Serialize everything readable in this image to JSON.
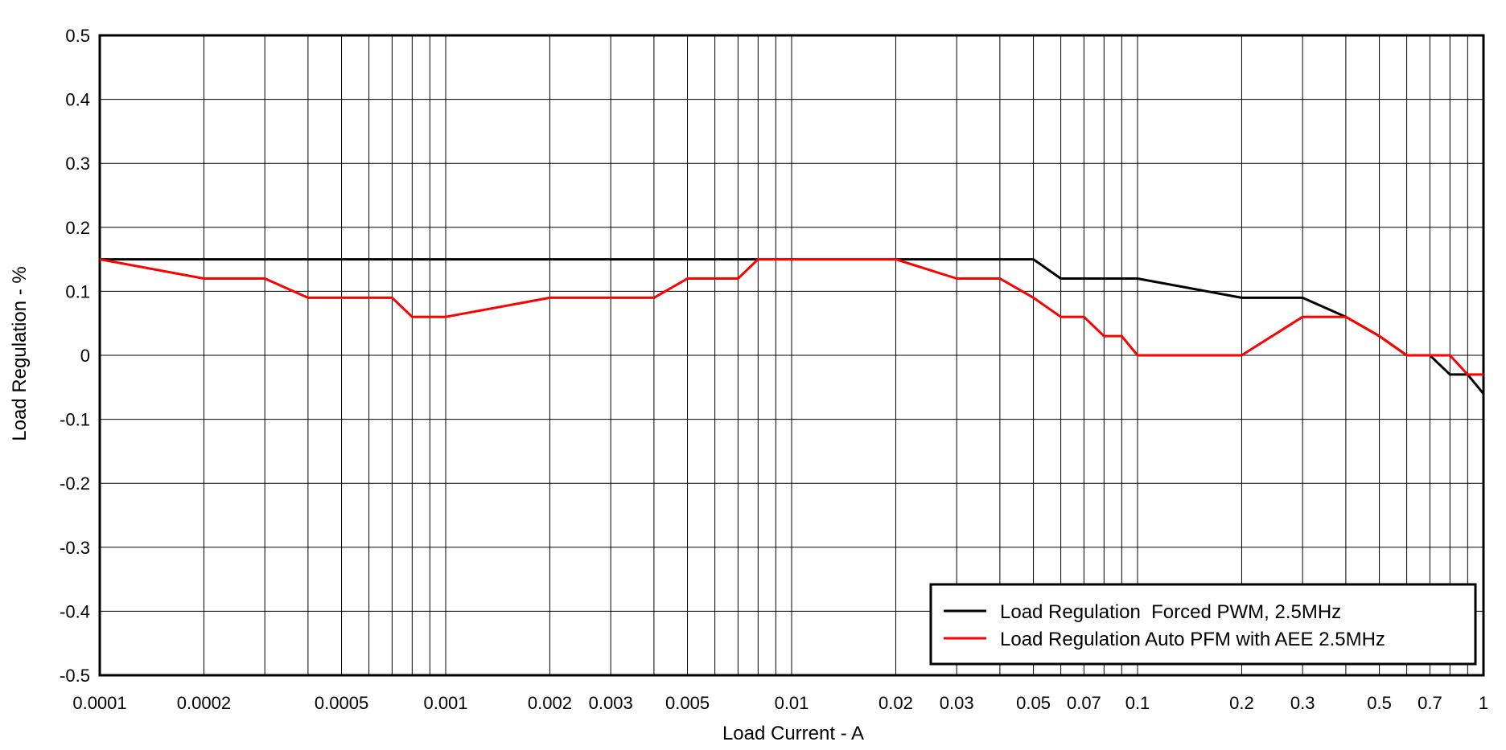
{
  "chart_data": {
    "type": "line",
    "title": "",
    "xlabel": "Load Current - A",
    "ylabel": "Load Regulation - %",
    "xscale": "log",
    "xlim": [
      0.0001,
      1
    ],
    "ylim": [
      -0.5,
      0.5
    ],
    "grid": true,
    "legend_position": "bottom-right",
    "x_tick_labels": [
      {
        "v": 0.0001,
        "label": "0.0001"
      },
      {
        "v": 0.0002,
        "label": "0.0002"
      },
      {
        "v": 0.0005,
        "label": "0.0005"
      },
      {
        "v": 0.001,
        "label": "0.001"
      },
      {
        "v": 0.002,
        "label": "0.002"
      },
      {
        "v": 0.003,
        "label": "0.003"
      },
      {
        "v": 0.005,
        "label": "0.005"
      },
      {
        "v": 0.01,
        "label": "0.01"
      },
      {
        "v": 0.02,
        "label": "0.02"
      },
      {
        "v": 0.03,
        "label": "0.03"
      },
      {
        "v": 0.05,
        "label": "0.05"
      },
      {
        "v": 0.07,
        "label": "0.07"
      },
      {
        "v": 0.1,
        "label": "0.1"
      },
      {
        "v": 0.2,
        "label": "0.2"
      },
      {
        "v": 0.3,
        "label": "0.3"
      },
      {
        "v": 0.5,
        "label": "0.5"
      },
      {
        "v": 0.7,
        "label": "0.7"
      },
      {
        "v": 1,
        "label": "1"
      }
    ],
    "y_tick_labels": [
      {
        "v": 0.5,
        "label": "0.5"
      },
      {
        "v": 0.4,
        "label": "0.4"
      },
      {
        "v": 0.3,
        "label": "0.3"
      },
      {
        "v": 0.2,
        "label": "0.2"
      },
      {
        "v": 0.1,
        "label": "0.1"
      },
      {
        "v": 0,
        "label": "0"
      },
      {
        "v": -0.1,
        "label": "-0.1"
      },
      {
        "v": -0.2,
        "label": "-0.2"
      },
      {
        "v": -0.3,
        "label": "-0.3"
      },
      {
        "v": -0.4,
        "label": "-0.4"
      },
      {
        "v": -0.5,
        "label": "-0.5"
      }
    ],
    "series": [
      {
        "name": "Load Regulation  Forced PWM, 2.5MHz",
        "color": "#000000",
        "points": [
          [
            0.0001,
            0.15
          ],
          [
            0.0002,
            0.15
          ],
          [
            0.0005,
            0.15
          ],
          [
            0.001,
            0.15
          ],
          [
            0.002,
            0.15
          ],
          [
            0.005,
            0.15
          ],
          [
            0.01,
            0.15
          ],
          [
            0.02,
            0.15
          ],
          [
            0.03,
            0.15
          ],
          [
            0.05,
            0.15
          ],
          [
            0.06,
            0.12
          ],
          [
            0.07,
            0.12
          ],
          [
            0.08,
            0.12
          ],
          [
            0.1,
            0.12
          ],
          [
            0.2,
            0.09
          ],
          [
            0.3,
            0.09
          ],
          [
            0.4,
            0.06
          ],
          [
            0.5,
            0.03
          ],
          [
            0.6,
            0.0
          ],
          [
            0.7,
            0.0
          ],
          [
            0.8,
            -0.03
          ],
          [
            0.9,
            -0.03
          ],
          [
            1.0,
            -0.06
          ]
        ]
      },
      {
        "name": "Load Regulation Auto PFM with AEE 2.5MHz",
        "color": "#ff0000",
        "points": [
          [
            0.0001,
            0.15
          ],
          [
            0.0002,
            0.12
          ],
          [
            0.0003,
            0.12
          ],
          [
            0.0004,
            0.09
          ],
          [
            0.0005,
            0.09
          ],
          [
            0.0007,
            0.09
          ],
          [
            0.0008,
            0.06
          ],
          [
            0.001,
            0.06
          ],
          [
            0.002,
            0.09
          ],
          [
            0.004,
            0.09
          ],
          [
            0.005,
            0.12
          ],
          [
            0.007,
            0.12
          ],
          [
            0.008,
            0.15
          ],
          [
            0.01,
            0.15
          ],
          [
            0.02,
            0.15
          ],
          [
            0.03,
            0.12
          ],
          [
            0.04,
            0.12
          ],
          [
            0.05,
            0.09
          ],
          [
            0.06,
            0.06
          ],
          [
            0.07,
            0.06
          ],
          [
            0.08,
            0.03
          ],
          [
            0.09,
            0.03
          ],
          [
            0.1,
            0.0
          ],
          [
            0.2,
            0.0
          ],
          [
            0.3,
            0.06
          ],
          [
            0.4,
            0.06
          ],
          [
            0.5,
            0.03
          ],
          [
            0.6,
            0.0
          ],
          [
            0.8,
            0.0
          ],
          [
            0.9,
            -0.03
          ],
          [
            1.0,
            -0.03
          ]
        ]
      }
    ]
  }
}
